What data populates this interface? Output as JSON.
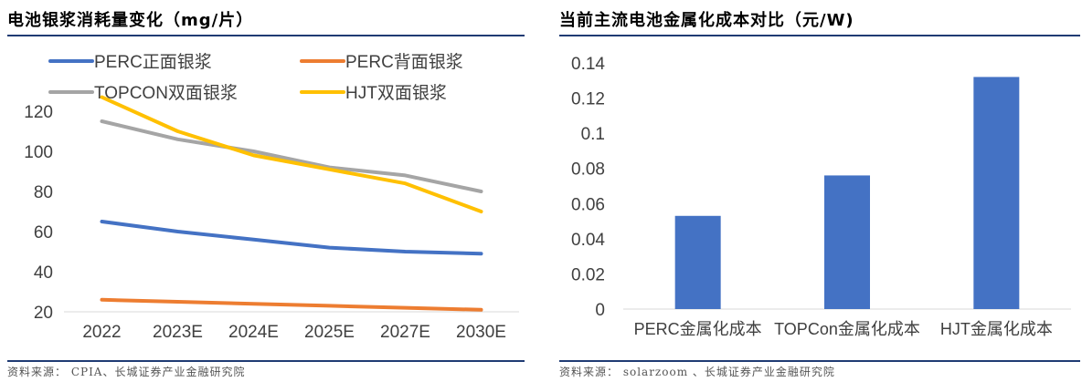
{
  "left": {
    "title": "电池银浆消耗量变化（mg/片）",
    "source": "资料来源：  CPIA、长城证券产业金融研究院"
  },
  "right": {
    "title": "当前主流电池金属化成本对比（元/W)",
    "source": "资料来源：  solarzoom  、长城证券产业金融研究院"
  },
  "chart_data": [
    {
      "type": "line",
      "title": "电池银浆消耗量变化（mg/片）",
      "categories": [
        "2022",
        "2023E",
        "2024E",
        "2025E",
        "2027E",
        "2030E"
      ],
      "ylim": [
        20,
        130
      ],
      "yticks": [
        20,
        40,
        60,
        80,
        100,
        120
      ],
      "legend": "top",
      "grid": false,
      "series": [
        {
          "name": "PERC正面银浆",
          "color": "#4472c4",
          "values": [
            65,
            60,
            56,
            52,
            50,
            49
          ]
        },
        {
          "name": "PERC背面银浆",
          "color": "#ed7d31",
          "values": [
            26,
            25,
            24,
            23,
            22,
            21
          ]
        },
        {
          "name": "TOPCON双面银浆",
          "color": "#a5a5a5",
          "values": [
            115,
            106,
            100,
            92,
            88,
            80
          ]
        },
        {
          "name": "HJT双面银浆",
          "color": "#ffc000",
          "values": [
            127,
            110,
            98,
            91,
            84,
            70
          ]
        }
      ]
    },
    {
      "type": "bar",
      "title": "当前主流电池金属化成本对比（元/W)",
      "categories": [
        "PERC金属化成本",
        "TOPCon金属化成本",
        "HJT金属化成本"
      ],
      "values": [
        0.053,
        0.076,
        0.132
      ],
      "ylim": [
        0,
        0.14
      ],
      "yticks": [
        "0",
        "0.02",
        "0.04",
        "0.06",
        "0.08",
        "0.1",
        "0.12",
        "0.14"
      ],
      "color": "#4472c4",
      "grid": false
    }
  ]
}
